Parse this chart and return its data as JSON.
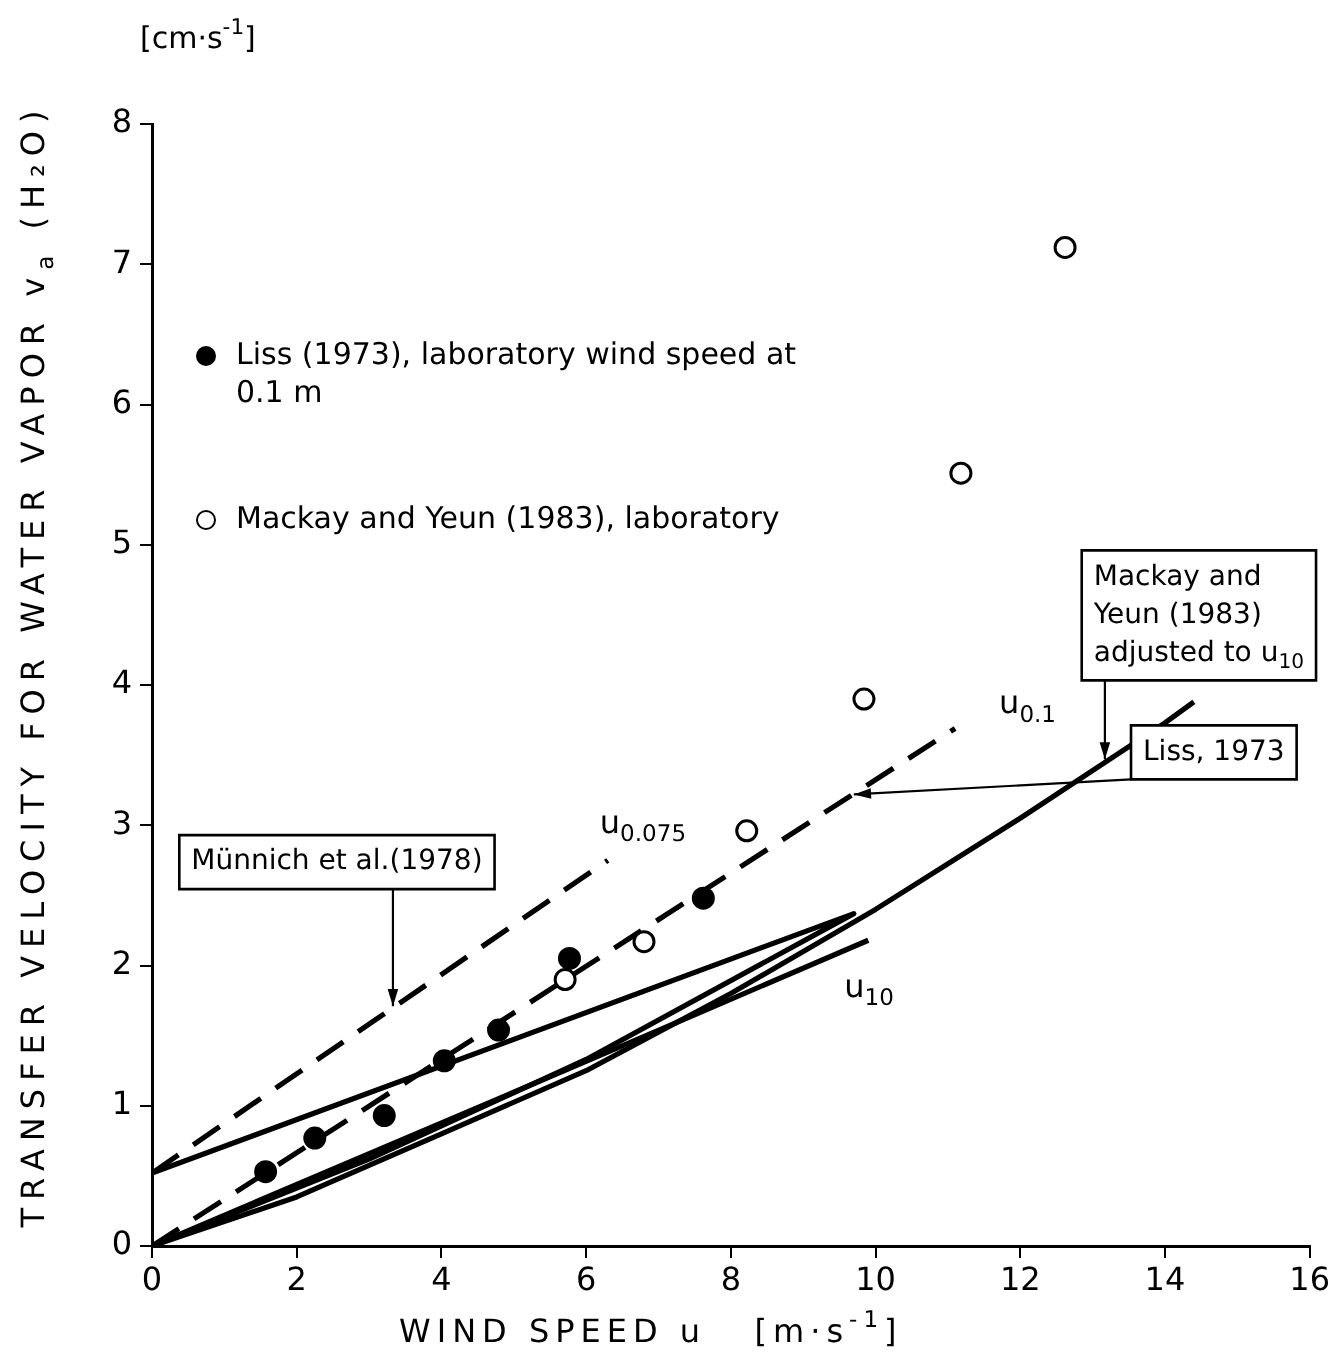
{
  "chart_data": {
    "type": "scatter",
    "xlabel": "WIND SPEED u   [m·s$^{-1}$]",
    "ylabel": "TRANSFER VELOCITY FOR WATER VAPOR v$_{a}$ (H₂O)",
    "xlim": [
      0,
      16
    ],
    "xticks": [
      0,
      2,
      4,
      6,
      8,
      10,
      12,
      14,
      16
    ],
    "ylim": [
      0,
      8
    ],
    "yticks": [
      0,
      1,
      2,
      3,
      4,
      5,
      6,
      7,
      8
    ],
    "grid": false,
    "legend": "top left",
    "series": [
      {
        "name": "Liss (1973), laboratory wind speed at 0.1 m",
        "type": "scatter",
        "marker": "circle",
        "color": "#000000",
        "x": [
          1.57,
          2.25,
          3.21,
          4.04,
          4.79,
          5.77,
          7.62
        ],
        "values": [
          0.53,
          0.77,
          0.93,
          1.32,
          1.54,
          2.05,
          2.48
        ]
      },
      {
        "name": "Mackay and Yeun (1983), laboratory",
        "type": "scatter",
        "marker": "circle",
        "color": "#ffffff",
        "x": [
          5.71,
          6.8,
          8.22,
          9.84,
          11.18,
          12.62
        ],
        "values": [
          1.9,
          2.17,
          2.96,
          3.9,
          5.51,
          7.12
        ]
      },
      {
        "type": "line",
        "color": "#000000",
        "line_style": "dashed",
        "x": [
          0,
          6.3
        ],
        "values": [
          0.52,
          2.75
        ]
      },
      {
        "type": "line",
        "color": "#000000",
        "line_style": "dashed",
        "x": [
          0,
          11.1
        ],
        "values": [
          0,
          3.69
        ]
      },
      {
        "type": "line",
        "color": "#000000",
        "line_style": "solid",
        "x": [
          0,
          9.7,
          6,
          3,
          0
        ],
        "values": [
          0.52,
          2.37,
          1.33,
          0.62,
          0
        ]
      },
      {
        "type": "line",
        "color": "#000000",
        "line_style": "solid",
        "x": [
          0,
          5.7,
          9.9
        ],
        "values": [
          0,
          1.25,
          2.18
        ]
      },
      {
        "type": "line",
        "color": "#000000",
        "line_style": "solid",
        "x": [
          0,
          2,
          4,
          6,
          8,
          10,
          12,
          14,
          14.4
        ],
        "values": [
          0,
          0.35,
          0.8,
          1.25,
          1.8,
          2.4,
          3.05,
          3.73,
          3.88
        ]
      }
    ],
    "annotations": [
      "[cm·s$^{-1}$]",
      {
        "text": "u$_{0.075}$",
        "x": 6.3,
        "y": 2.75
      },
      {
        "text": "u$_{0.1}$",
        "x": 11.1,
        "y": 3.69
      },
      {
        "text": "u$_{10}$",
        "x": 9.9,
        "y": 2.18
      },
      {
        "text": "Münnich et al.(1978)",
        "x": 3.33,
        "y": 1.71
      },
      {
        "text": "Liss, 1973",
        "x": 9.7,
        "y": 3.22
      },
      {
        "text": "Mackay and Yeun (1983) adjusted to u$_{10}$",
        "x": 13.17,
        "y": 3.47
      }
    ]
  }
}
